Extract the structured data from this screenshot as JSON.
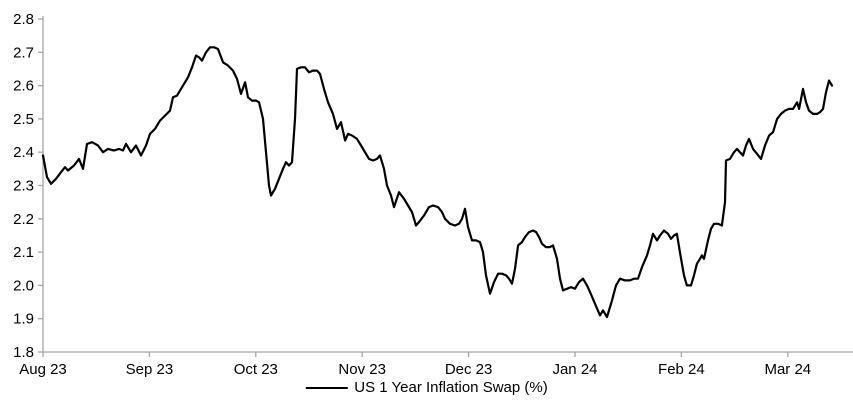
{
  "chart_data": {
    "type": "line",
    "title": "",
    "legend": {
      "position": "bottom",
      "entries": [
        "US 1 Year Inflation Swap (%)"
      ]
    },
    "x_axis": {
      "labels": [
        "Aug 23",
        "Sep 23",
        "Oct 23",
        "Nov 23",
        "Dec 23",
        "Jan 24",
        "Feb 24",
        "Mar 24"
      ],
      "unit": "months"
    },
    "y_axis": {
      "min": 1.8,
      "max": 2.8,
      "step": 0.1,
      "tick_labels": [
        "1.8",
        "1.9",
        "2.0",
        "2.1",
        "2.2",
        "2.3",
        "2.4",
        "2.5",
        "2.6",
        "2.7",
        "2.8"
      ]
    },
    "grid": "off",
    "series": [
      {
        "name": "US 1 Year Inflation Swap (%)",
        "color": "#000000",
        "points": [
          [
            0.0,
            2.39
          ],
          [
            0.038,
            2.325
          ],
          [
            0.075,
            2.305
          ],
          [
            0.122,
            2.32
          ],
          [
            0.169,
            2.34
          ],
          [
            0.207,
            2.355
          ],
          [
            0.235,
            2.345
          ],
          [
            0.291,
            2.36
          ],
          [
            0.338,
            2.38
          ],
          [
            0.376,
            2.35
          ],
          [
            0.414,
            2.425
          ],
          [
            0.461,
            2.43
          ],
          [
            0.517,
            2.42
          ],
          [
            0.564,
            2.4
          ],
          [
            0.611,
            2.41
          ],
          [
            0.667,
            2.405
          ],
          [
            0.714,
            2.41
          ],
          [
            0.752,
            2.405
          ],
          [
            0.78,
            2.425
          ],
          [
            0.827,
            2.4
          ],
          [
            0.874,
            2.42
          ],
          [
            0.921,
            2.39
          ],
          [
            0.968,
            2.42
          ],
          [
            1.006,
            2.455
          ],
          [
            1.053,
            2.47
          ],
          [
            1.1,
            2.495
          ],
          [
            1.147,
            2.51
          ],
          [
            1.194,
            2.525
          ],
          [
            1.222,
            2.565
          ],
          [
            1.259,
            2.57
          ],
          [
            1.316,
            2.6
          ],
          [
            1.363,
            2.625
          ],
          [
            1.4,
            2.655
          ],
          [
            1.438,
            2.69
          ],
          [
            1.466,
            2.685
          ],
          [
            1.494,
            2.675
          ],
          [
            1.532,
            2.7
          ],
          [
            1.57,
            2.715
          ],
          [
            1.607,
            2.715
          ],
          [
            1.645,
            2.71
          ],
          [
            1.692,
            2.67
          ],
          [
            1.739,
            2.66
          ],
          [
            1.786,
            2.645
          ],
          [
            1.823,
            2.62
          ],
          [
            1.861,
            2.575
          ],
          [
            1.899,
            2.61
          ],
          [
            1.927,
            2.565
          ],
          [
            1.964,
            2.555
          ],
          [
            2.002,
            2.555
          ],
          [
            2.03,
            2.55
          ],
          [
            2.068,
            2.5
          ],
          [
            2.096,
            2.4
          ],
          [
            2.124,
            2.3
          ],
          [
            2.143,
            2.27
          ],
          [
            2.18,
            2.29
          ],
          [
            2.218,
            2.32
          ],
          [
            2.256,
            2.35
          ],
          [
            2.284,
            2.37
          ],
          [
            2.312,
            2.36
          ],
          [
            2.34,
            2.37
          ],
          [
            2.368,
            2.5
          ],
          [
            2.387,
            2.65
          ],
          [
            2.425,
            2.655
          ],
          [
            2.462,
            2.655
          ],
          [
            2.5,
            2.64
          ],
          [
            2.538,
            2.645
          ],
          [
            2.575,
            2.645
          ],
          [
            2.603,
            2.635
          ],
          [
            2.641,
            2.59
          ],
          [
            2.679,
            2.55
          ],
          [
            2.726,
            2.515
          ],
          [
            2.763,
            2.47
          ],
          [
            2.801,
            2.49
          ],
          [
            2.839,
            2.435
          ],
          [
            2.867,
            2.455
          ],
          [
            2.904,
            2.45
          ],
          [
            2.951,
            2.44
          ],
          [
            2.989,
            2.42
          ],
          [
            3.026,
            2.4
          ],
          [
            3.064,
            2.38
          ],
          [
            3.102,
            2.375
          ],
          [
            3.139,
            2.38
          ],
          [
            3.167,
            2.39
          ],
          [
            3.205,
            2.35
          ],
          [
            3.233,
            2.3
          ],
          [
            3.271,
            2.27
          ],
          [
            3.299,
            2.235
          ],
          [
            3.346,
            2.28
          ],
          [
            3.393,
            2.26
          ],
          [
            3.43,
            2.24
          ],
          [
            3.468,
            2.22
          ],
          [
            3.506,
            2.18
          ],
          [
            3.534,
            2.19
          ],
          [
            3.581,
            2.21
          ],
          [
            3.628,
            2.235
          ],
          [
            3.665,
            2.24
          ],
          [
            3.712,
            2.235
          ],
          [
            3.75,
            2.22
          ],
          [
            3.778,
            2.2
          ],
          [
            3.825,
            2.185
          ],
          [
            3.872,
            2.18
          ],
          [
            3.91,
            2.185
          ],
          [
            3.938,
            2.2
          ],
          [
            3.966,
            2.23
          ],
          [
            3.994,
            2.175
          ],
          [
            4.032,
            2.135
          ],
          [
            4.07,
            2.135
          ],
          [
            4.107,
            2.13
          ],
          [
            4.135,
            2.1
          ],
          [
            4.164,
            2.03
          ],
          [
            4.201,
            1.975
          ],
          [
            4.239,
            2.01
          ],
          [
            4.277,
            2.035
          ],
          [
            4.314,
            2.035
          ],
          [
            4.352,
            2.03
          ],
          [
            4.38,
            2.02
          ],
          [
            4.408,
            2.005
          ],
          [
            4.436,
            2.05
          ],
          [
            4.465,
            2.12
          ],
          [
            4.502,
            2.13
          ],
          [
            4.53,
            2.145
          ],
          [
            4.568,
            2.16
          ],
          [
            4.605,
            2.165
          ],
          [
            4.634,
            2.16
          ],
          [
            4.662,
            2.145
          ],
          [
            4.69,
            2.125
          ],
          [
            4.727,
            2.115
          ],
          [
            4.765,
            2.115
          ],
          [
            4.793,
            2.12
          ],
          [
            4.831,
            2.08
          ],
          [
            4.859,
            2.02
          ],
          [
            4.887,
            1.985
          ],
          [
            4.925,
            1.99
          ],
          [
            4.962,
            1.995
          ],
          [
            5.0,
            1.99
          ],
          [
            5.038,
            2.01
          ],
          [
            5.075,
            2.02
          ],
          [
            5.113,
            2.0
          ],
          [
            5.141,
            1.98
          ],
          [
            5.188,
            1.945
          ],
          [
            5.235,
            1.91
          ],
          [
            5.263,
            1.925
          ],
          [
            5.301,
            1.905
          ],
          [
            5.348,
            1.955
          ],
          [
            5.385,
            2.0
          ],
          [
            5.423,
            2.02
          ],
          [
            5.47,
            2.015
          ],
          [
            5.517,
            2.015
          ],
          [
            5.554,
            2.02
          ],
          [
            5.592,
            2.02
          ],
          [
            5.63,
            2.055
          ],
          [
            5.677,
            2.09
          ],
          [
            5.705,
            2.12
          ],
          [
            5.733,
            2.155
          ],
          [
            5.771,
            2.135
          ],
          [
            5.799,
            2.15
          ],
          [
            5.836,
            2.165
          ],
          [
            5.874,
            2.155
          ],
          [
            5.902,
            2.14
          ],
          [
            5.93,
            2.15
          ],
          [
            5.958,
            2.155
          ],
          [
            5.986,
            2.1
          ],
          [
            6.024,
            2.03
          ],
          [
            6.052,
            2.0
          ],
          [
            6.09,
            2.0
          ],
          [
            6.118,
            2.03
          ],
          [
            6.146,
            2.065
          ],
          [
            6.175,
            2.08
          ],
          [
            6.193,
            2.09
          ],
          [
            6.212,
            2.08
          ],
          [
            6.25,
            2.135
          ],
          [
            6.278,
            2.17
          ],
          [
            6.306,
            2.185
          ],
          [
            6.344,
            2.185
          ],
          [
            6.381,
            2.18
          ],
          [
            6.41,
            2.25
          ],
          [
            6.419,
            2.375
          ],
          [
            6.457,
            2.38
          ],
          [
            6.494,
            2.4
          ],
          [
            6.523,
            2.41
          ],
          [
            6.551,
            2.4
          ],
          [
            6.579,
            2.39
          ],
          [
            6.607,
            2.42
          ],
          [
            6.635,
            2.44
          ],
          [
            6.673,
            2.41
          ],
          [
            6.711,
            2.395
          ],
          [
            6.748,
            2.38
          ],
          [
            6.786,
            2.42
          ],
          [
            6.824,
            2.45
          ],
          [
            6.861,
            2.46
          ],
          [
            6.899,
            2.5
          ],
          [
            6.936,
            2.515
          ],
          [
            6.974,
            2.525
          ],
          [
            7.012,
            2.53
          ],
          [
            7.049,
            2.53
          ],
          [
            7.087,
            2.55
          ],
          [
            7.106,
            2.53
          ],
          [
            7.143,
            2.59
          ],
          [
            7.171,
            2.55
          ],
          [
            7.199,
            2.525
          ],
          [
            7.237,
            2.515
          ],
          [
            7.274,
            2.515
          ],
          [
            7.303,
            2.52
          ],
          [
            7.331,
            2.53
          ],
          [
            7.359,
            2.58
          ],
          [
            7.387,
            2.615
          ],
          [
            7.415,
            2.6
          ]
        ]
      }
    ],
    "axis_color": "#a6a6a6"
  },
  "legend": {
    "label": "US 1 Year Inflation Swap (%)"
  }
}
